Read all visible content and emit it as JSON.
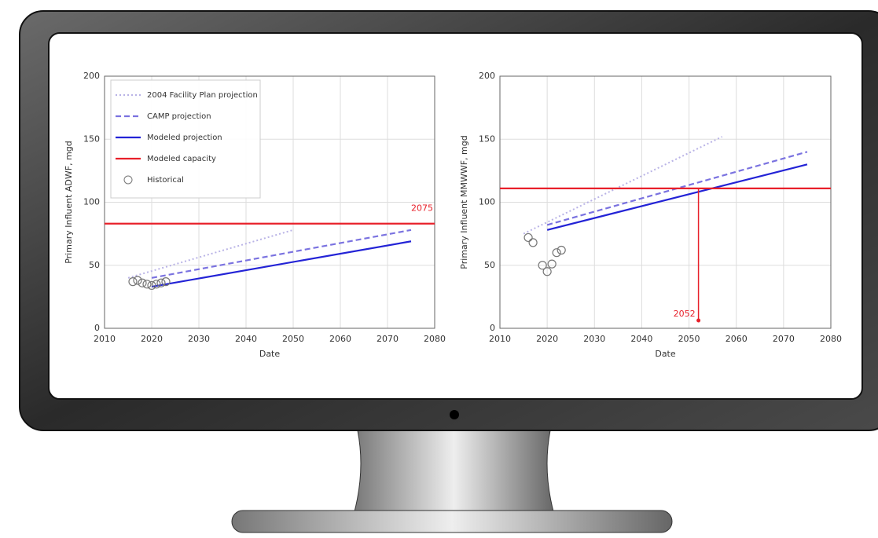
{
  "chart_data": [
    {
      "type": "line",
      "x_label": "Date",
      "y_label": "Primary Influent ADWF, mgd",
      "xlim": [
        2010,
        2080
      ],
      "xticks": [
        2010,
        2020,
        2030,
        2040,
        2050,
        2060,
        2070,
        2080
      ],
      "ylim": [
        0,
        200
      ],
      "yticks": [
        0,
        50,
        100,
        150,
        200
      ],
      "grid": true,
      "legend": "upper left",
      "series": [
        {
          "name": "2004 Facility Plan projection",
          "color": "#b9b3e6",
          "style": "dotted",
          "x": [
            2015,
            2050
          ],
          "values": [
            40,
            78
          ]
        },
        {
          "name": "CAMP projection",
          "color": "#7a72e0",
          "style": "dashed",
          "x": [
            2020,
            2075
          ],
          "values": [
            40,
            78
          ]
        },
        {
          "name": "Modeled projection",
          "color": "#2323d6",
          "style": "solid",
          "x": [
            2020,
            2075
          ],
          "values": [
            33,
            69
          ]
        },
        {
          "name": "Modeled capacity",
          "color": "#e8202a",
          "style": "solid",
          "x": [
            2010,
            2080
          ],
          "values": [
            83,
            83
          ]
        },
        {
          "name": "Historical",
          "color": "#777777",
          "style": "markers",
          "x": [
            2016,
            2017,
            2018,
            2019,
            2020,
            2021,
            2022,
            2023
          ],
          "values": [
            37,
            38,
            36,
            35,
            34,
            35,
            36,
            37
          ]
        }
      ],
      "annotations": [
        {
          "text": "2075",
          "x": 2075,
          "y": 95
        }
      ]
    },
    {
      "type": "line",
      "x_label": "Date",
      "y_label": "Primary Influent MMWWF, mgd",
      "xlim": [
        2010,
        2080
      ],
      "xticks": [
        2010,
        2020,
        2030,
        2040,
        2050,
        2060,
        2070,
        2080
      ],
      "ylim": [
        0,
        200
      ],
      "yticks": [
        0,
        50,
        100,
        150,
        200
      ],
      "grid": true,
      "series": [
        {
          "color": "#b9b3e6",
          "style": "dotted",
          "x": [
            2015,
            2057
          ],
          "values": [
            75,
            152
          ]
        },
        {
          "color": "#7a72e0",
          "style": "dashed",
          "x": [
            2020,
            2075
          ],
          "values": [
            82,
            140
          ]
        },
        {
          "color": "#2323d6",
          "style": "solid",
          "x": [
            2020,
            2075
          ],
          "values": [
            78,
            130
          ]
        },
        {
          "color": "#e8202a",
          "style": "solid",
          "x": [
            2010,
            2080
          ],
          "values": [
            111,
            111
          ]
        },
        {
          "color": "#777777",
          "style": "markers",
          "x": [
            2016,
            2017,
            2019,
            2020,
            2021,
            2022,
            2023
          ],
          "values": [
            72,
            68,
            50,
            45,
            51,
            60,
            62
          ]
        }
      ],
      "annotations": [
        {
          "text": "2052",
          "x": 2052,
          "y": 8
        }
      ]
    }
  ]
}
